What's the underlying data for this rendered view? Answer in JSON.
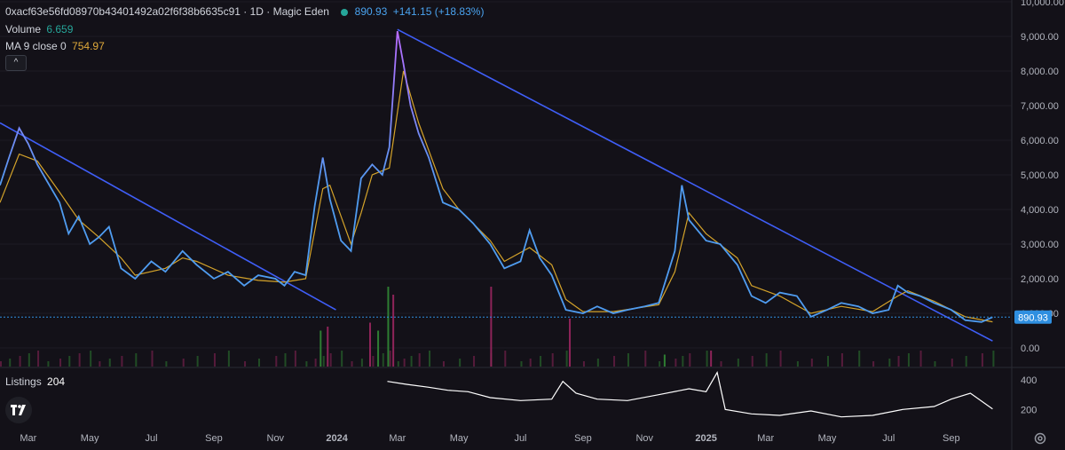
{
  "header": {
    "symbol_title": "0xacf63e56fd08970b43401492a02f6f38b6635c91 · 1D · Magic Eden",
    "status_dot_color": "#26a69a",
    "last_price": "890.93",
    "change": "+141.15 (+18.83%)",
    "volume_label": "Volume",
    "volume_value": "6.659",
    "ma_label": "MA 9 close 0",
    "ma_value": "754.97",
    "collapse_icon": "chevron-up-icon"
  },
  "listings_pane": {
    "label": "Listings",
    "value": "204"
  },
  "price_badge": "890.93",
  "colors": {
    "background": "#131118",
    "price_line_start": "#b86bff",
    "price_line_end": "#4f9cf0",
    "ma_line": "#d4a32a",
    "trendline": "#3f5ef7",
    "volume_up": "#2e7d32",
    "volume_down": "#8e2459",
    "listings_line": "#ffffff",
    "price_badge_bg": "#2f8fe0"
  },
  "chart_data": [
    {
      "type": "line",
      "pane": "price",
      "y_ticks": [
        "10,000.00",
        "9,000.00",
        "8,000.00",
        "7,000.00",
        "6,000.00",
        "5,000.00",
        "4,000.00",
        "3,000.00",
        "2,000.00",
        "1,000.00",
        "0.00"
      ],
      "ylim": [
        0,
        10000
      ],
      "x_ticks": [
        "Mar",
        "May",
        "Jul",
        "Sep",
        "Nov",
        "2024",
        "Mar",
        "May",
        "Jul",
        "Sep",
        "Nov",
        "2025",
        "Mar",
        "May",
        "Jul",
        "Sep"
      ],
      "xlim": [
        "2023-02-01",
        "2025-10-31"
      ],
      "series": [
        {
          "name": "price",
          "points": [
            [
              "2023-02-01",
              4700
            ],
            [
              "2023-02-10",
              5500
            ],
            [
              "2023-02-20",
              6350
            ],
            [
              "2023-03-01",
              5900
            ],
            [
              "2023-03-10",
              5300
            ],
            [
              "2023-03-20",
              4800
            ],
            [
              "2023-04-01",
              4200
            ],
            [
              "2023-04-10",
              3300
            ],
            [
              "2023-04-20",
              3800
            ],
            [
              "2023-05-01",
              3000
            ],
            [
              "2023-05-10",
              3200
            ],
            [
              "2023-05-20",
              3500
            ],
            [
              "2023-06-01",
              2300
            ],
            [
              "2023-06-15",
              2000
            ],
            [
              "2023-07-01",
              2500
            ],
            [
              "2023-07-15",
              2200
            ],
            [
              "2023-08-01",
              2800
            ],
            [
              "2023-08-15",
              2400
            ],
            [
              "2023-09-01",
              2000
            ],
            [
              "2023-09-15",
              2200
            ],
            [
              "2023-10-01",
              1800
            ],
            [
              "2023-10-15",
              2100
            ],
            [
              "2023-11-01",
              2000
            ],
            [
              "2023-11-10",
              1800
            ],
            [
              "2023-11-20",
              2200
            ],
            [
              "2023-12-01",
              2100
            ],
            [
              "2023-12-10",
              4100
            ],
            [
              "2023-12-18",
              5500
            ],
            [
              "2023-12-25",
              4300
            ],
            [
              "2024-01-05",
              3100
            ],
            [
              "2024-01-15",
              2800
            ],
            [
              "2024-01-25",
              4900
            ],
            [
              "2024-02-05",
              5300
            ],
            [
              "2024-02-15",
              5000
            ],
            [
              "2024-02-22",
              5800
            ],
            [
              "2024-03-01",
              9150
            ],
            [
              "2024-03-07",
              8200
            ],
            [
              "2024-03-14",
              7000
            ],
            [
              "2024-03-22",
              6200
            ],
            [
              "2024-04-01",
              5500
            ],
            [
              "2024-04-15",
              4200
            ],
            [
              "2024-05-01",
              4000
            ],
            [
              "2024-05-15",
              3600
            ],
            [
              "2024-06-01",
              3000
            ],
            [
              "2024-06-15",
              2300
            ],
            [
              "2024-07-01",
              2500
            ],
            [
              "2024-07-10",
              3400
            ],
            [
              "2024-07-20",
              2600
            ],
            [
              "2024-08-01",
              2100
            ],
            [
              "2024-08-15",
              1100
            ],
            [
              "2024-09-01",
              1000
            ],
            [
              "2024-09-15",
              1200
            ],
            [
              "2024-10-01",
              1000
            ],
            [
              "2024-10-15",
              1100
            ],
            [
              "2024-11-01",
              1200
            ],
            [
              "2024-11-15",
              1300
            ],
            [
              "2024-12-01",
              2800
            ],
            [
              "2024-12-08",
              4700
            ],
            [
              "2024-12-15",
              3700
            ],
            [
              "2025-01-01",
              3100
            ],
            [
              "2025-01-15",
              3000
            ],
            [
              "2025-02-01",
              2400
            ],
            [
              "2025-02-15",
              1500
            ],
            [
              "2025-03-01",
              1300
            ],
            [
              "2025-03-15",
              1600
            ],
            [
              "2025-04-01",
              1500
            ],
            [
              "2025-04-15",
              900
            ],
            [
              "2025-05-01",
              1100
            ],
            [
              "2025-05-15",
              1300
            ],
            [
              "2025-06-01",
              1200
            ],
            [
              "2025-06-15",
              1000
            ],
            [
              "2025-07-01",
              1100
            ],
            [
              "2025-07-10",
              1800
            ],
            [
              "2025-07-20",
              1600
            ],
            [
              "2025-08-01",
              1500
            ],
            [
              "2025-08-15",
              1300
            ],
            [
              "2025-09-01",
              1100
            ],
            [
              "2025-09-15",
              800
            ],
            [
              "2025-10-01",
              750
            ],
            [
              "2025-10-12",
              890.93
            ]
          ]
        },
        {
          "name": "MA 9 close 0",
          "points": [
            [
              "2023-02-01",
              4200
            ],
            [
              "2023-02-20",
              5600
            ],
            [
              "2023-03-10",
              5400
            ],
            [
              "2023-04-01",
              4500
            ],
            [
              "2023-04-20",
              3700
            ],
            [
              "2023-05-10",
              3200
            ],
            [
              "2023-06-01",
              2600
            ],
            [
              "2023-06-15",
              2100
            ],
            [
              "2023-07-15",
              2300
            ],
            [
              "2023-08-01",
              2600
            ],
            [
              "2023-08-15",
              2500
            ],
            [
              "2023-09-15",
              2100
            ],
            [
              "2023-10-15",
              1950
            ],
            [
              "2023-11-10",
              1900
            ],
            [
              "2023-12-01",
              2000
            ],
            [
              "2023-12-18",
              4600
            ],
            [
              "2023-12-25",
              4700
            ],
            [
              "2024-01-15",
              3000
            ],
            [
              "2024-01-25",
              3900
            ],
            [
              "2024-02-05",
              5000
            ],
            [
              "2024-02-22",
              5200
            ],
            [
              "2024-03-07",
              8000
            ],
            [
              "2024-03-14",
              7300
            ],
            [
              "2024-03-22",
              6500
            ],
            [
              "2024-04-15",
              4600
            ],
            [
              "2024-05-01",
              4000
            ],
            [
              "2024-06-01",
              3100
            ],
            [
              "2024-06-15",
              2500
            ],
            [
              "2024-07-10",
              2900
            ],
            [
              "2024-08-01",
              2400
            ],
            [
              "2024-08-15",
              1400
            ],
            [
              "2024-09-01",
              1050
            ],
            [
              "2024-10-01",
              1050
            ],
            [
              "2024-11-15",
              1250
            ],
            [
              "2024-12-01",
              2200
            ],
            [
              "2024-12-15",
              3900
            ],
            [
              "2025-01-01",
              3300
            ],
            [
              "2025-02-01",
              2600
            ],
            [
              "2025-02-15",
              1800
            ],
            [
              "2025-03-15",
              1500
            ],
            [
              "2025-04-15",
              1000
            ],
            [
              "2025-05-15",
              1200
            ],
            [
              "2025-06-15",
              1050
            ],
            [
              "2025-07-10",
              1500
            ],
            [
              "2025-07-20",
              1650
            ],
            [
              "2025-08-15",
              1350
            ],
            [
              "2025-09-15",
              900
            ],
            [
              "2025-10-12",
              754.97
            ]
          ]
        }
      ],
      "trendlines": [
        [
          [
            "2023-02-01",
            6500
          ],
          [
            "2023-12-31",
            1100
          ]
        ],
        [
          [
            "2024-03-01",
            9200
          ],
          [
            "2025-10-12",
            200
          ]
        ]
      ],
      "price_reference_line": 890.93
    },
    {
      "type": "bar",
      "pane": "volume",
      "name": "Volume",
      "note_values": "relative volume bars (no axis printed)",
      "bars": [
        [
          "2023-12-15",
          0.45,
          "up"
        ],
        [
          "2023-12-22",
          0.5,
          "down"
        ],
        [
          "2024-02-02",
          0.55,
          "down"
        ],
        [
          "2024-02-10",
          0.45,
          "up"
        ],
        [
          "2024-02-20",
          1.0,
          "up"
        ],
        [
          "2024-02-25",
          0.9,
          "down"
        ],
        [
          "2024-06-01",
          1.0,
          "down"
        ],
        [
          "2024-08-18",
          0.6,
          "down"
        ],
        [
          "2024-11-20",
          0.15,
          "up"
        ],
        [
          "2025-01-05",
          0.2,
          "down"
        ]
      ]
    },
    {
      "type": "line",
      "pane": "listings",
      "name": "Listings",
      "y_ticks": [
        "400",
        "200"
      ],
      "ylim": [
        100,
        460
      ],
      "points": [
        [
          "2024-02-20",
          390
        ],
        [
          "2024-03-10",
          370
        ],
        [
          "2024-04-01",
          350
        ],
        [
          "2024-04-20",
          330
        ],
        [
          "2024-05-10",
          320
        ],
        [
          "2024-06-01",
          280
        ],
        [
          "2024-07-01",
          260
        ],
        [
          "2024-08-01",
          270
        ],
        [
          "2024-08-12",
          390
        ],
        [
          "2024-08-25",
          310
        ],
        [
          "2024-09-15",
          270
        ],
        [
          "2024-10-15",
          260
        ],
        [
          "2024-11-15",
          300
        ],
        [
          "2024-12-15",
          340
        ],
        [
          "2025-01-01",
          320
        ],
        [
          "2025-01-12",
          450
        ],
        [
          "2025-01-20",
          200
        ],
        [
          "2025-02-15",
          170
        ],
        [
          "2025-03-15",
          160
        ],
        [
          "2025-04-15",
          190
        ],
        [
          "2025-05-15",
          150
        ],
        [
          "2025-06-15",
          160
        ],
        [
          "2025-07-15",
          200
        ],
        [
          "2025-08-15",
          220
        ],
        [
          "2025-09-01",
          270
        ],
        [
          "2025-09-20",
          310
        ],
        [
          "2025-10-12",
          204
        ]
      ]
    }
  ]
}
